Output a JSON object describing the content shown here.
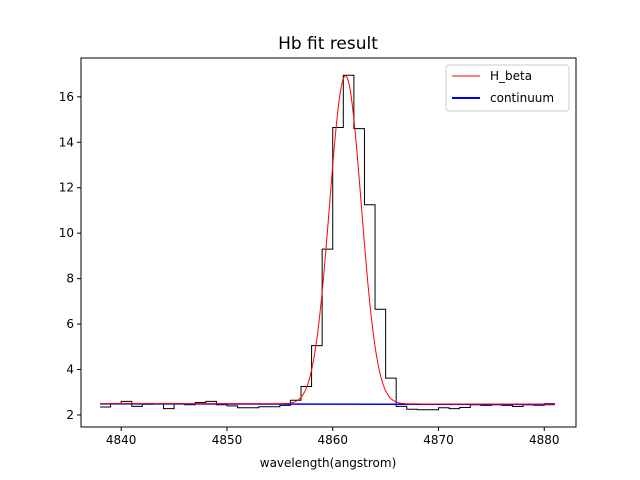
{
  "chart_data": {
    "type": "line",
    "title": "Hb fit result",
    "xlabel": "wavelength(angstrom)",
    "ylabel": "",
    "xlim": [
      4836.2,
      4883.0
    ],
    "ylim": [
      1.47,
      17.71
    ],
    "xticks": [
      4840,
      4850,
      4860,
      4870,
      4880
    ],
    "yticks": [
      2,
      4,
      6,
      8,
      10,
      12,
      14,
      16
    ],
    "grid": false,
    "legend_position": "top-right",
    "data_step": {
      "name": "",
      "color": "#000000",
      "edges": [
        4838.0,
        4839.0,
        4840.0,
        4841.0,
        4842.0,
        4843.0,
        4844.0,
        4845.0,
        4846.0,
        4847.0,
        4848.0,
        4849.0,
        4850.0,
        4851.0,
        4852.0,
        4853.0,
        4854.0,
        4855.0,
        4856.0,
        4857.0,
        4858.0,
        4859.0,
        4860.0,
        4861.0,
        4862.0,
        4863.0,
        4864.0,
        4865.0,
        4866.0,
        4867.0,
        4868.0,
        4869.0,
        4870.0,
        4871.0,
        4872.0,
        4873.0,
        4874.0,
        4875.0,
        4876.0,
        4877.0,
        4878.0,
        4879.0,
        4880.0,
        4881.0
      ],
      "values": [
        2.35,
        2.5,
        2.6,
        2.38,
        2.47,
        2.48,
        2.28,
        2.5,
        2.45,
        2.55,
        2.6,
        2.45,
        2.4,
        2.32,
        2.32,
        2.36,
        2.36,
        2.42,
        2.65,
        3.25,
        5.05,
        9.3,
        14.65,
        16.95,
        14.6,
        11.25,
        6.65,
        3.62,
        2.38,
        2.25,
        2.23,
        2.23,
        2.32,
        2.28,
        2.33,
        2.45,
        2.42,
        2.45,
        2.42,
        2.37,
        2.45,
        2.43,
        2.5
      ]
    },
    "series": [
      {
        "name": "H_beta",
        "color": "#ff0000",
        "model": "gaussian",
        "amplitude": 14.45,
        "center": 4861.2,
        "sigma": 1.5,
        "baseline": 2.5,
        "baseline_slope": -0.0005,
        "x_range": [
          4838.0,
          4881.0
        ]
      },
      {
        "name": "continuum",
        "color": "#0000ff",
        "x": [
          4838.0,
          4881.0
        ],
        "values": [
          2.49,
          2.46
        ]
      }
    ]
  }
}
